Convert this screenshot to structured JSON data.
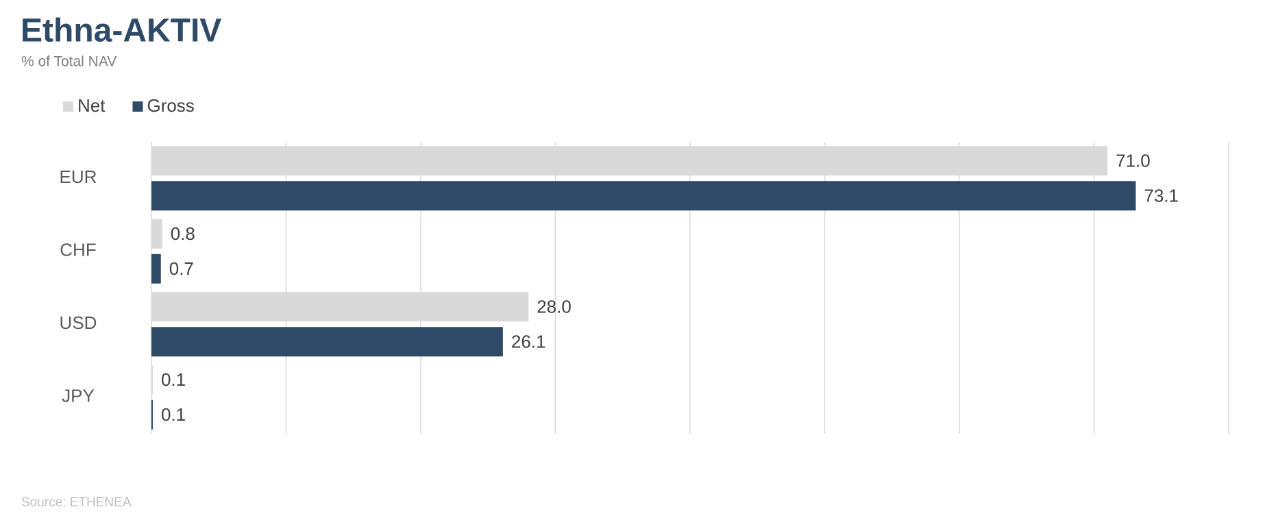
{
  "chart_data": {
    "type": "hbar",
    "title": "Ethna-AKTIV",
    "subtitle": "% of Total NAV",
    "source": "Source: ETHENEA",
    "categories": [
      "EUR",
      "CHF",
      "USD",
      "JPY"
    ],
    "series": [
      {
        "name": "Net",
        "color": "#d9d9d9",
        "values": [
          71.0,
          0.8,
          28.0,
          0.1
        ],
        "value_labels": [
          "71.0",
          "0.8",
          "28.0",
          "0.1"
        ]
      },
      {
        "name": "Gross",
        "color": "#2e4a66",
        "values": [
          73.1,
          0.7,
          26.1,
          0.1
        ],
        "value_labels": [
          "73.1",
          "0.7",
          "26.1",
          "0.1"
        ]
      }
    ],
    "xlim": [
      0,
      80
    ],
    "xticks": [
      0,
      10,
      20,
      30,
      40,
      50,
      60,
      70,
      80
    ],
    "grid": true,
    "legend": "top-left"
  }
}
